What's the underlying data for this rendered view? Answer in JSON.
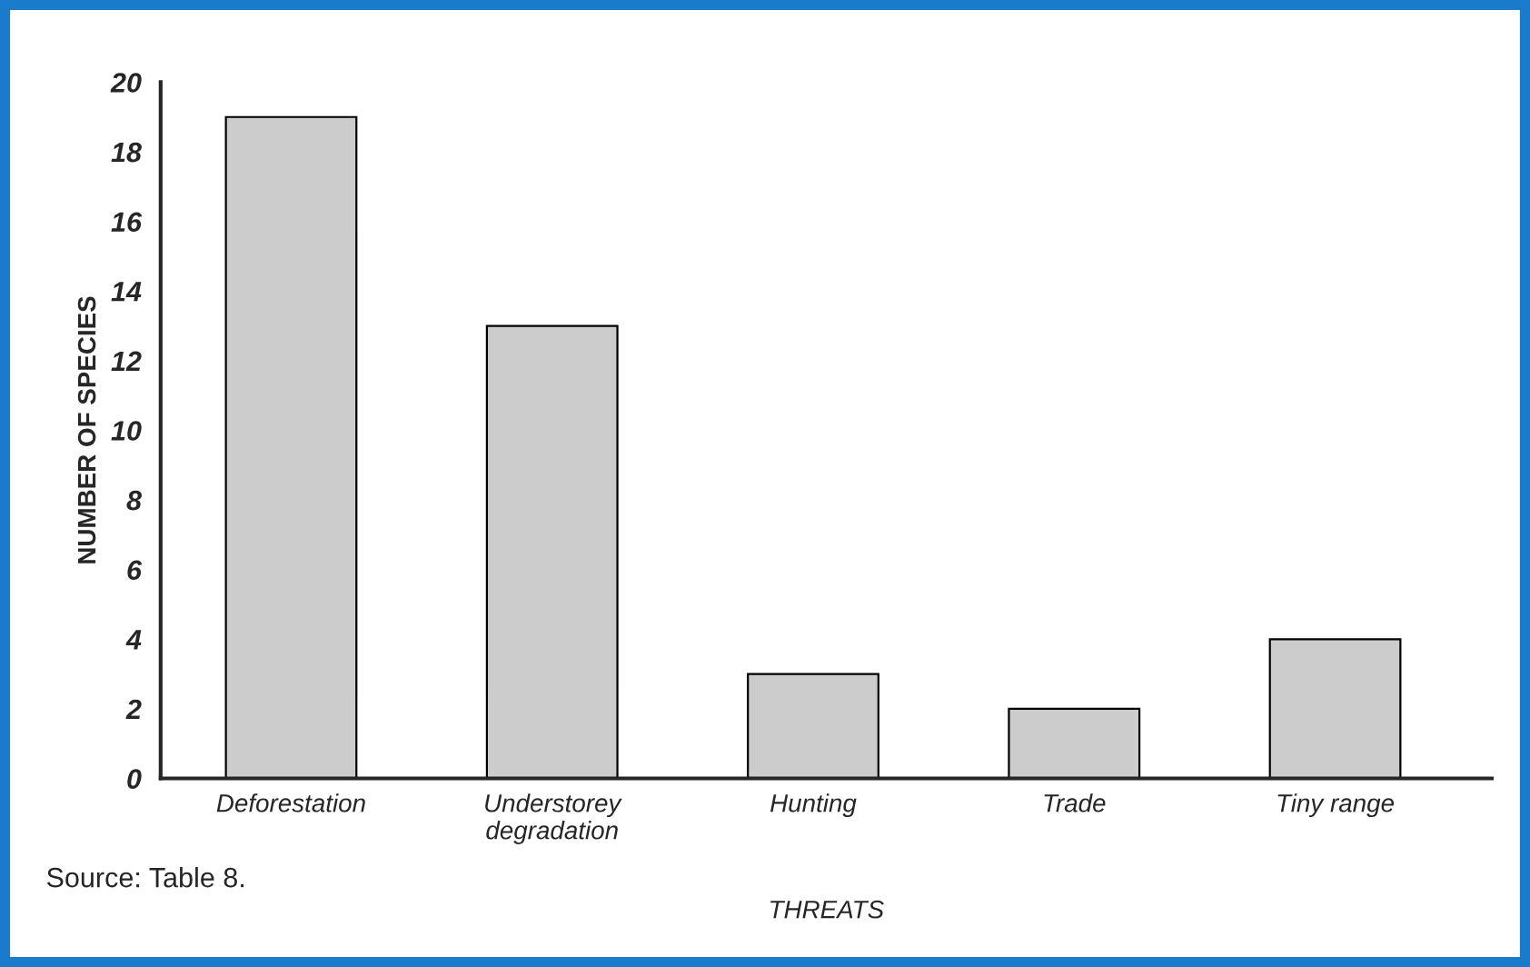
{
  "chart_data": {
    "type": "bar",
    "xlabel": "THREATS",
    "ylabel": "NUMBER OF SPECIES",
    "categories": [
      "Deforestation",
      "Understorey\ndegradation",
      "Hunting",
      "Trade",
      "Tiny range"
    ],
    "values": [
      19,
      13,
      3,
      2,
      4
    ],
    "color": "#cccccc",
    "ylim": [
      0,
      20
    ],
    "yticks": [
      0,
      2,
      4,
      6,
      8,
      10,
      12,
      14,
      16,
      18,
      20
    ],
    "grid": false,
    "annotations": [
      "Source: Table 8."
    ]
  }
}
